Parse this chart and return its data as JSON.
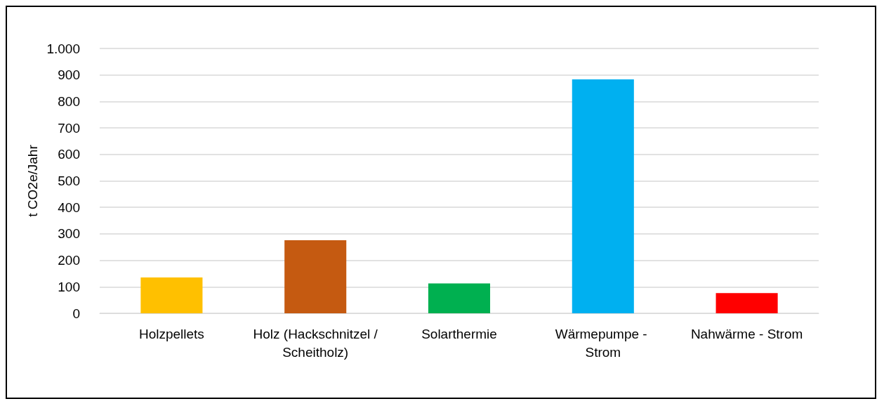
{
  "chart_data": {
    "type": "bar",
    "ylabel": "t CO2e/Jahr",
    "categories": [
      "Holzpellets",
      "Holz (Hackschnitzel /Scheitholz)",
      "Solarthermie",
      "Wärmepumpe - Strom",
      "Nahwärme - Strom"
    ],
    "values": [
      135,
      276,
      113,
      883,
      76
    ],
    "colors": [
      "#ffc000",
      "#c55a11",
      "#00b050",
      "#00b0f0",
      "#ff0000"
    ],
    "ylim": [
      0,
      1000
    ],
    "yticks": [
      0,
      100,
      200,
      300,
      400,
      500,
      600,
      700,
      800,
      900,
      {
        "value": 1000,
        "label": "1.000"
      }
    ],
    "grid": "y"
  }
}
